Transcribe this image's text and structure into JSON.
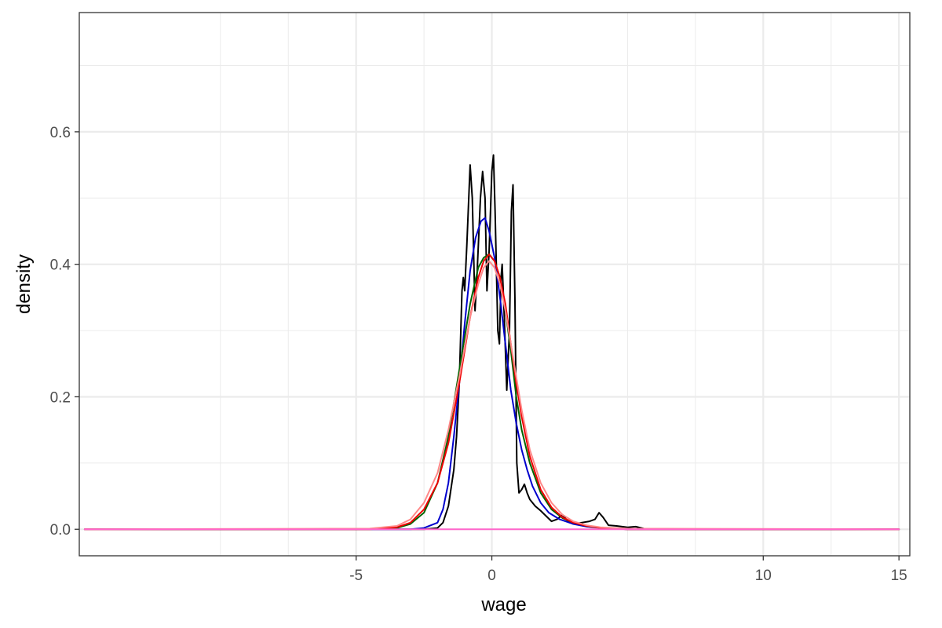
{
  "chart_data": {
    "type": "line",
    "title": "",
    "xlabel": "wage",
    "ylabel": "density",
    "xlim": [
      -15.2,
      15.4
    ],
    "ylim": [
      -0.04,
      0.78
    ],
    "x_ticks": [
      -5,
      0,
      10,
      15
    ],
    "x_tick_labels": [
      "-5",
      "0",
      "10",
      "15"
    ],
    "x_minor_grid": [
      -10,
      -7.5,
      -2.5,
      5,
      7.5,
      12.5
    ],
    "y_ticks": [
      0.0,
      0.2,
      0.4,
      0.6
    ],
    "y_tick_labels": [
      "0.0",
      "0.2",
      "0.4",
      "0.6"
    ],
    "y_minor_grid": [
      0.1,
      0.3,
      0.5,
      0.7
    ],
    "grid": true,
    "legend": "none",
    "series": [
      {
        "color": "#000000",
        "points": [
          [
            -15.0,
            0.0
          ],
          [
            -4.0,
            0.0
          ],
          [
            -2.5,
            0.0
          ],
          [
            -2.0,
            0.002
          ],
          [
            -1.8,
            0.01
          ],
          [
            -1.6,
            0.035
          ],
          [
            -1.4,
            0.09
          ],
          [
            -1.3,
            0.14
          ],
          [
            -1.2,
            0.22
          ],
          [
            -1.1,
            0.36
          ],
          [
            -1.05,
            0.38
          ],
          [
            -1.0,
            0.36
          ],
          [
            -0.92,
            0.43
          ],
          [
            -0.8,
            0.55
          ],
          [
            -0.72,
            0.5
          ],
          [
            -0.62,
            0.33
          ],
          [
            -0.55,
            0.38
          ],
          [
            -0.42,
            0.5
          ],
          [
            -0.34,
            0.54
          ],
          [
            -0.25,
            0.5
          ],
          [
            -0.18,
            0.36
          ],
          [
            -0.1,
            0.42
          ],
          [
            0.0,
            0.54
          ],
          [
            0.06,
            0.565
          ],
          [
            0.12,
            0.48
          ],
          [
            0.22,
            0.3
          ],
          [
            0.28,
            0.28
          ],
          [
            0.34,
            0.38
          ],
          [
            0.38,
            0.4
          ],
          [
            0.45,
            0.33
          ],
          [
            0.55,
            0.21
          ],
          [
            0.65,
            0.3
          ],
          [
            0.72,
            0.48
          ],
          [
            0.78,
            0.52
          ],
          [
            0.85,
            0.35
          ],
          [
            0.92,
            0.1
          ],
          [
            1.0,
            0.055
          ],
          [
            1.1,
            0.06
          ],
          [
            1.2,
            0.068
          ],
          [
            1.3,
            0.055
          ],
          [
            1.4,
            0.045
          ],
          [
            1.6,
            0.035
          ],
          [
            1.8,
            0.028
          ],
          [
            2.0,
            0.02
          ],
          [
            2.2,
            0.012
          ],
          [
            2.4,
            0.015
          ],
          [
            2.6,
            0.022
          ],
          [
            2.8,
            0.012
          ],
          [
            3.0,
            0.008
          ],
          [
            3.3,
            0.01
          ],
          [
            3.6,
            0.012
          ],
          [
            3.8,
            0.015
          ],
          [
            3.95,
            0.025
          ],
          [
            4.1,
            0.018
          ],
          [
            4.3,
            0.006
          ],
          [
            4.6,
            0.005
          ],
          [
            5.0,
            0.003
          ],
          [
            5.3,
            0.004
          ],
          [
            5.6,
            0.001
          ],
          [
            6.0,
            0.0
          ],
          [
            15.0,
            0.0
          ]
        ]
      },
      {
        "color": "#0000cc",
        "points": [
          [
            -15.0,
            0.0
          ],
          [
            -4.0,
            0.0
          ],
          [
            -3.0,
            0.0
          ],
          [
            -2.5,
            0.002
          ],
          [
            -2.0,
            0.01
          ],
          [
            -1.8,
            0.03
          ],
          [
            -1.6,
            0.07
          ],
          [
            -1.4,
            0.14
          ],
          [
            -1.2,
            0.22
          ],
          [
            -1.0,
            0.31
          ],
          [
            -0.8,
            0.39
          ],
          [
            -0.6,
            0.44
          ],
          [
            -0.4,
            0.465
          ],
          [
            -0.25,
            0.47
          ],
          [
            -0.1,
            0.45
          ],
          [
            0.1,
            0.41
          ],
          [
            0.3,
            0.35
          ],
          [
            0.5,
            0.28
          ],
          [
            0.7,
            0.21
          ],
          [
            0.9,
            0.16
          ],
          [
            1.1,
            0.12
          ],
          [
            1.3,
            0.09
          ],
          [
            1.5,
            0.065
          ],
          [
            1.8,
            0.04
          ],
          [
            2.1,
            0.025
          ],
          [
            2.5,
            0.015
          ],
          [
            3.0,
            0.008
          ],
          [
            3.5,
            0.004
          ],
          [
            4.0,
            0.002
          ],
          [
            5.0,
            0.0
          ],
          [
            15.0,
            0.0
          ]
        ]
      },
      {
        "color": "#006400",
        "points": [
          [
            -15.0,
            0.0
          ],
          [
            -4.5,
            0.0
          ],
          [
            -3.5,
            0.002
          ],
          [
            -3.0,
            0.008
          ],
          [
            -2.5,
            0.025
          ],
          [
            -2.0,
            0.07
          ],
          [
            -1.6,
            0.14
          ],
          [
            -1.2,
            0.24
          ],
          [
            -0.8,
            0.34
          ],
          [
            -0.5,
            0.395
          ],
          [
            -0.3,
            0.41
          ],
          [
            -0.1,
            0.415
          ],
          [
            0.1,
            0.405
          ],
          [
            0.3,
            0.38
          ],
          [
            0.5,
            0.33
          ],
          [
            0.7,
            0.27
          ],
          [
            0.9,
            0.2
          ],
          [
            1.1,
            0.15
          ],
          [
            1.4,
            0.1
          ],
          [
            1.8,
            0.055
          ],
          [
            2.2,
            0.03
          ],
          [
            2.6,
            0.017
          ],
          [
            3.0,
            0.01
          ],
          [
            3.5,
            0.005
          ],
          [
            4.0,
            0.002
          ],
          [
            5.0,
            0.0
          ],
          [
            15.0,
            0.0
          ]
        ]
      },
      {
        "color": "#ee0000",
        "points": [
          [
            -15.0,
            0.0
          ],
          [
            -4.5,
            0.0
          ],
          [
            -3.5,
            0.003
          ],
          [
            -3.0,
            0.01
          ],
          [
            -2.5,
            0.03
          ],
          [
            -2.0,
            0.07
          ],
          [
            -1.6,
            0.13
          ],
          [
            -1.2,
            0.22
          ],
          [
            -0.8,
            0.32
          ],
          [
            -0.5,
            0.38
          ],
          [
            -0.3,
            0.405
          ],
          [
            -0.1,
            0.415
          ],
          [
            0.1,
            0.405
          ],
          [
            0.3,
            0.38
          ],
          [
            0.5,
            0.34
          ],
          [
            0.7,
            0.28
          ],
          [
            0.9,
            0.22
          ],
          [
            1.1,
            0.17
          ],
          [
            1.4,
            0.11
          ],
          [
            1.8,
            0.06
          ],
          [
            2.2,
            0.033
          ],
          [
            2.6,
            0.018
          ],
          [
            3.0,
            0.01
          ],
          [
            3.5,
            0.005
          ],
          [
            4.0,
            0.002
          ],
          [
            5.0,
            0.0
          ],
          [
            15.0,
            0.0
          ]
        ]
      },
      {
        "color": "#ff8888",
        "points": [
          [
            -15.0,
            0.0
          ],
          [
            -4.5,
            0.001
          ],
          [
            -3.5,
            0.005
          ],
          [
            -3.0,
            0.015
          ],
          [
            -2.5,
            0.04
          ],
          [
            -2.0,
            0.085
          ],
          [
            -1.6,
            0.15
          ],
          [
            -1.2,
            0.23
          ],
          [
            -0.8,
            0.32
          ],
          [
            -0.5,
            0.37
          ],
          [
            -0.3,
            0.395
          ],
          [
            -0.1,
            0.405
          ],
          [
            0.1,
            0.395
          ],
          [
            0.3,
            0.37
          ],
          [
            0.5,
            0.33
          ],
          [
            0.7,
            0.28
          ],
          [
            0.9,
            0.23
          ],
          [
            1.1,
            0.18
          ],
          [
            1.4,
            0.12
          ],
          [
            1.8,
            0.07
          ],
          [
            2.2,
            0.04
          ],
          [
            2.6,
            0.022
          ],
          [
            3.0,
            0.012
          ],
          [
            3.5,
            0.006
          ],
          [
            4.0,
            0.003
          ],
          [
            5.0,
            0.001
          ],
          [
            15.0,
            0.0
          ]
        ]
      },
      {
        "color": "#ff66cc",
        "points": [
          [
            -15.0,
            0.0
          ],
          [
            15.0,
            0.0
          ]
        ]
      }
    ]
  }
}
